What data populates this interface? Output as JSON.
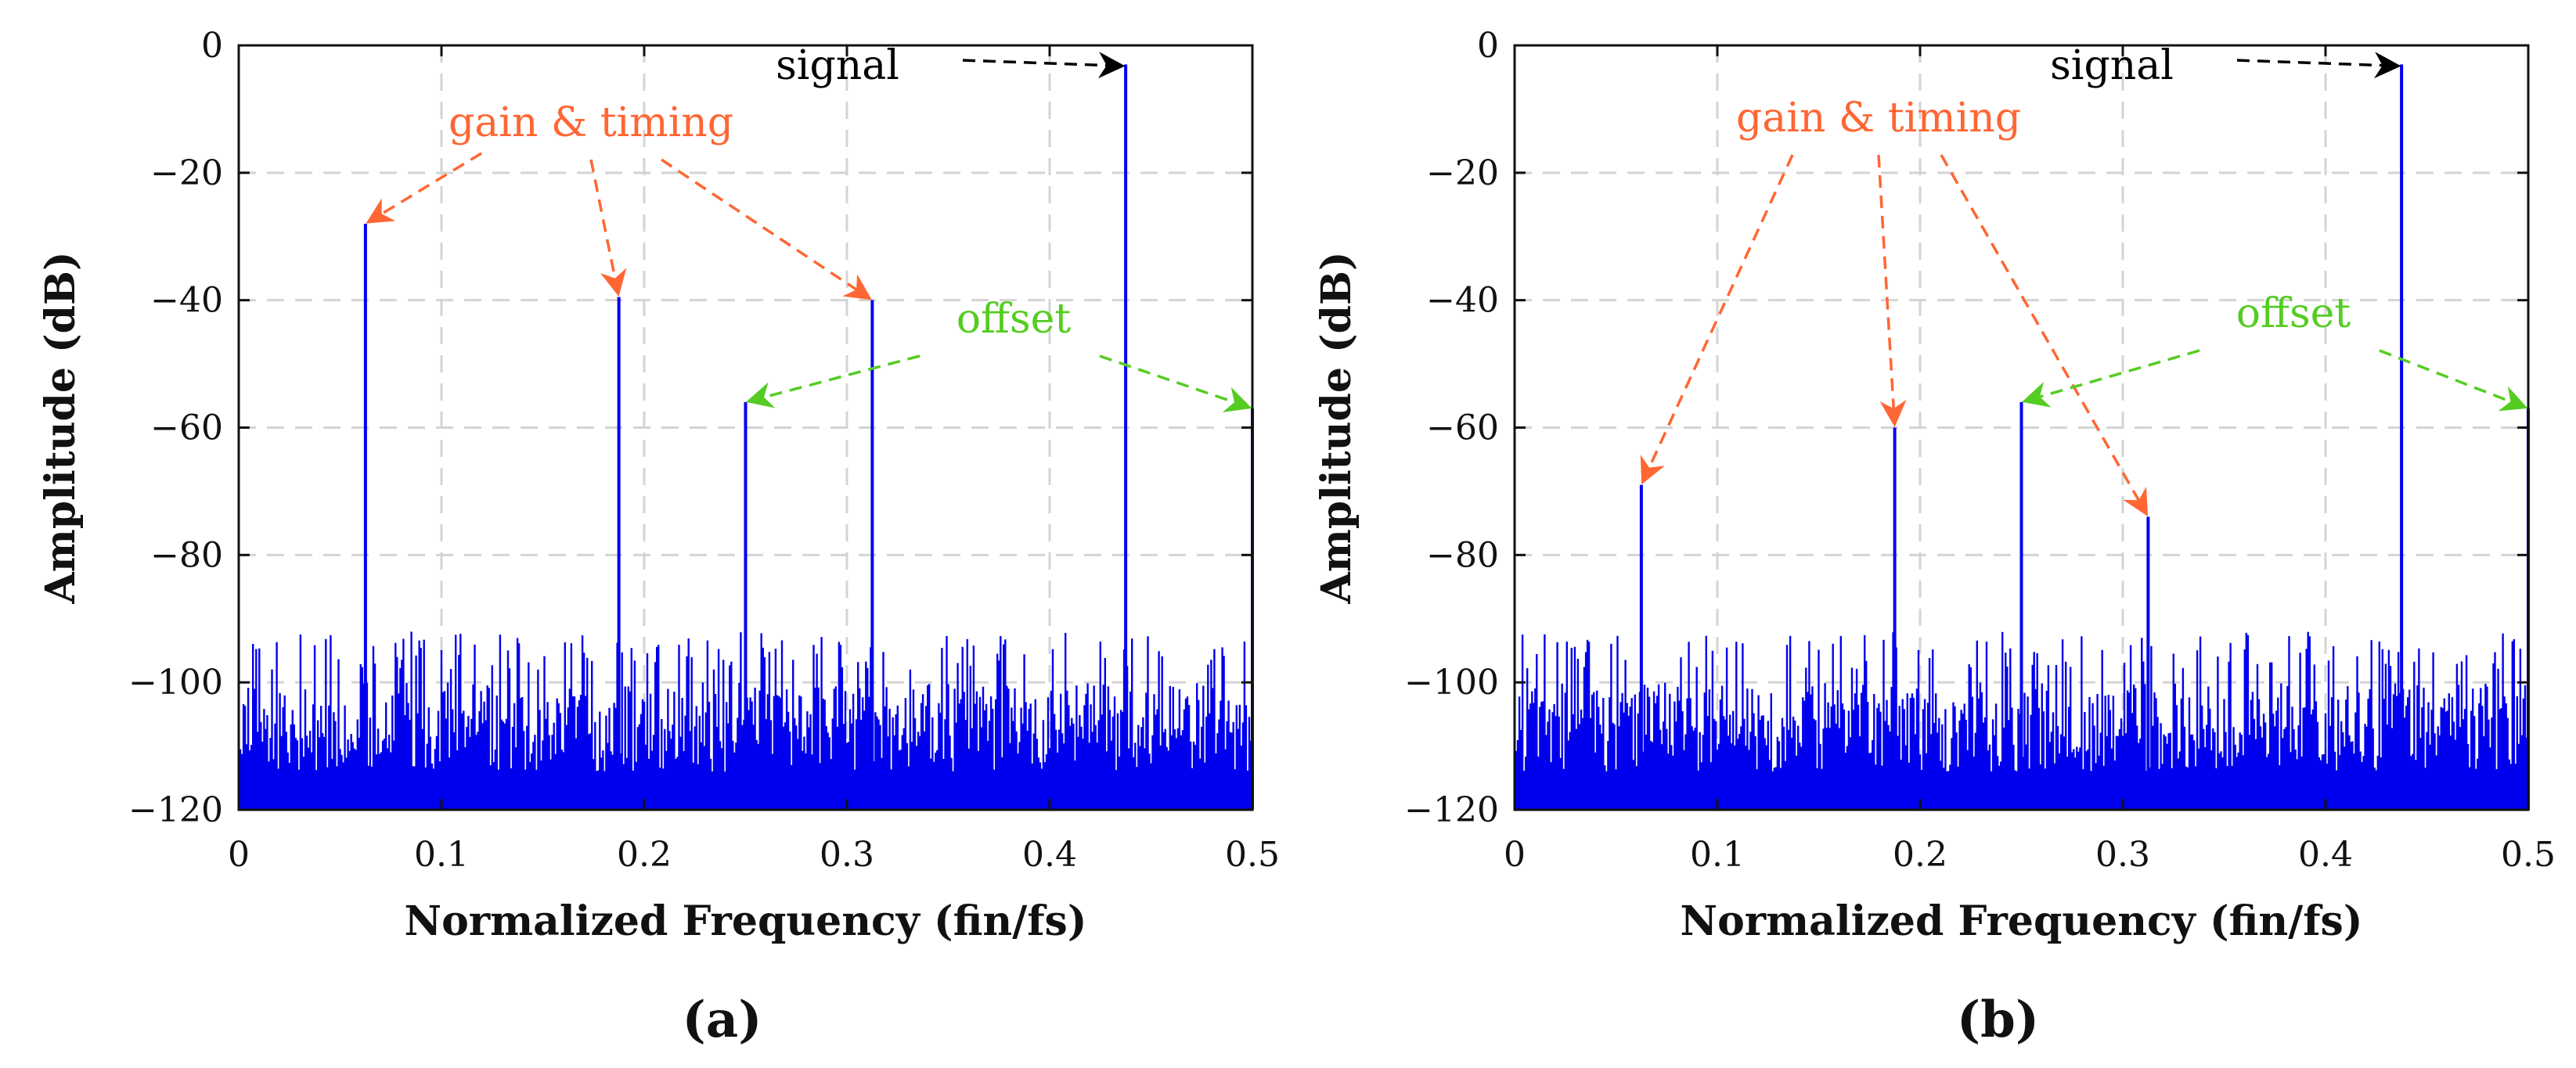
{
  "chart_data": [
    {
      "type": "line",
      "panel_label": "(a)",
      "xlabel": "Normalized Frequency (fin/fs)",
      "ylabel": "Amplitude (dB)",
      "xlim": [
        0,
        0.5
      ],
      "ylim": [
        -120,
        0
      ],
      "xticks": [
        "0",
        "0.1",
        "0.2",
        "0.3",
        "0.4",
        "0.5"
      ],
      "yticks": [
        "0",
        "−20",
        "−40",
        "−60",
        "−80",
        "−100",
        "−120"
      ],
      "grid": true,
      "series": [
        {
          "name": "spectrum",
          "color": "#0000ee",
          "noise_floor_db": [
            -92,
            -100
          ],
          "spurs": [
            {
              "x": 0.0625,
              "y": -28
            },
            {
              "x": 0.1875,
              "y": -39.5
            },
            {
              "x": 0.25,
              "y": -56
            },
            {
              "x": 0.3125,
              "y": -40
            },
            {
              "x": 0.4375,
              "y": -3
            },
            {
              "x": 0.5,
              "y": -57
            }
          ]
        }
      ],
      "annotations": [
        {
          "text": "signal",
          "color": "#000000",
          "targets": [
            [
              0.4375,
              -3
            ]
          ]
        },
        {
          "text": "gain & timing",
          "color": "#ff6633",
          "targets": [
            [
              0.0625,
              -28
            ],
            [
              0.1875,
              -39.5
            ],
            [
              0.3125,
              -40
            ]
          ]
        },
        {
          "text": "offset",
          "color": "#55cc22",
          "targets": [
            [
              0.25,
              -56
            ],
            [
              0.5,
              -57
            ]
          ]
        }
      ]
    },
    {
      "type": "line",
      "panel_label": "(b)",
      "xlabel": "Normalized Frequency (fin/fs)",
      "ylabel": "Amplitude (dB)",
      "xlim": [
        0,
        0.5
      ],
      "ylim": [
        -120,
        0
      ],
      "xticks": [
        "0",
        "0.1",
        "0.2",
        "0.3",
        "0.4",
        "0.5"
      ],
      "yticks": [
        "0",
        "−20",
        "−40",
        "−60",
        "−80",
        "−100",
        "−120"
      ],
      "grid": true,
      "series": [
        {
          "name": "spectrum",
          "color": "#0000ee",
          "noise_floor_db": [
            -92,
            -100
          ],
          "spurs": [
            {
              "x": 0.0625,
              "y": -69
            },
            {
              "x": 0.1875,
              "y": -60
            },
            {
              "x": 0.25,
              "y": -56
            },
            {
              "x": 0.3125,
              "y": -74
            },
            {
              "x": 0.4375,
              "y": -3
            },
            {
              "x": 0.5,
              "y": -57
            }
          ]
        }
      ],
      "annotations": [
        {
          "text": "signal",
          "color": "#000000",
          "targets": [
            [
              0.4375,
              -3
            ]
          ]
        },
        {
          "text": "gain & timing",
          "color": "#ff6633",
          "targets": [
            [
              0.0625,
              -69
            ],
            [
              0.1875,
              -60
            ],
            [
              0.3125,
              -74
            ]
          ]
        },
        {
          "text": "offset",
          "color": "#55cc22",
          "targets": [
            [
              0.25,
              -56
            ],
            [
              0.5,
              -57
            ]
          ]
        }
      ]
    }
  ]
}
